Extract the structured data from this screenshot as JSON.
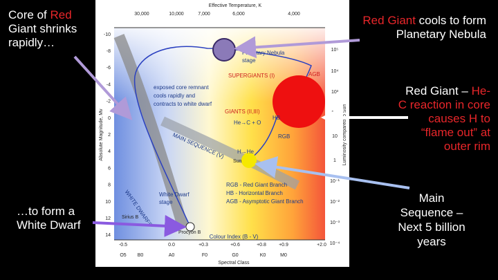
{
  "slide": {
    "left_top": [
      "Core of ",
      "Red",
      " Giant shrinks rapidly…"
    ],
    "left_bottom": "…to form a White Dwarf",
    "right_top": [
      "Red Giant",
      " cools to form Planetary Nebula"
    ],
    "right_mid": [
      "Red Giant –",
      " He-C reaction in core causes H to “flame out” at outer rim"
    ],
    "right_bottom": "Main Sequence – Next 5 billion years"
  },
  "diagram": {
    "top_axis_title": "Effective Temperature, K",
    "temperatures": [
      "30,000",
      "10,000",
      "7,000",
      "6,000",
      "4,000"
    ],
    "left_axis_title": "Absolute Magnitude, Mv",
    "magnitudes": [
      "-10",
      "-8",
      "-6",
      "-4",
      "-2",
      "0",
      "2",
      "4",
      "6",
      "8",
      "10",
      "12",
      "14"
    ],
    "right_axis_title": "Luminosity compared to Sun",
    "luminosities": [
      "10⁵",
      "10⁴",
      "10³",
      "10²",
      "10",
      "1",
      "10⁻¹",
      "10⁻²",
      "10⁻³",
      "10⁻⁴"
    ],
    "bottom_axis_title": "Colour Index (B - V)",
    "colour_indices": [
      "-0.5",
      "0.0",
      "+0.3",
      "+0.6",
      "+0.8",
      "+0.9",
      "+2.0"
    ],
    "spectral_axis_title": "Spectral Class",
    "spectral_classes": [
      "O5",
      "B0",
      "A0",
      "F0",
      "G0",
      "K0",
      "M0"
    ],
    "labels": {
      "planetary_nebula": [
        "Planetary Nebula",
        "stage"
      ],
      "supergiants": "SUPERGIANTS (I)",
      "agb": "AGB",
      "remnant": [
        "exposed core remnant",
        "cools rapidly and",
        "contracts to white dwarf"
      ],
      "giants": "GIANTS (II,III)",
      "he_c": "He→C + O",
      "hb": "HB",
      "rgb": "RGB",
      "main_sequence": "MAIN SEQUENCE (V)",
      "h_he": "H→He",
      "sun": "Sun",
      "white_dwarf_stage": [
        "White Dwarf",
        "stage"
      ],
      "white_dwarfs": "WHITE DWARFS",
      "sirius_b": "Sirius B",
      "procyon_b": "Procyon B"
    },
    "legend": [
      "RGB - Red Giant Branch",
      "HB - Horizontal Branch",
      "AGB - Asymptotic Giant Branch"
    ]
  }
}
